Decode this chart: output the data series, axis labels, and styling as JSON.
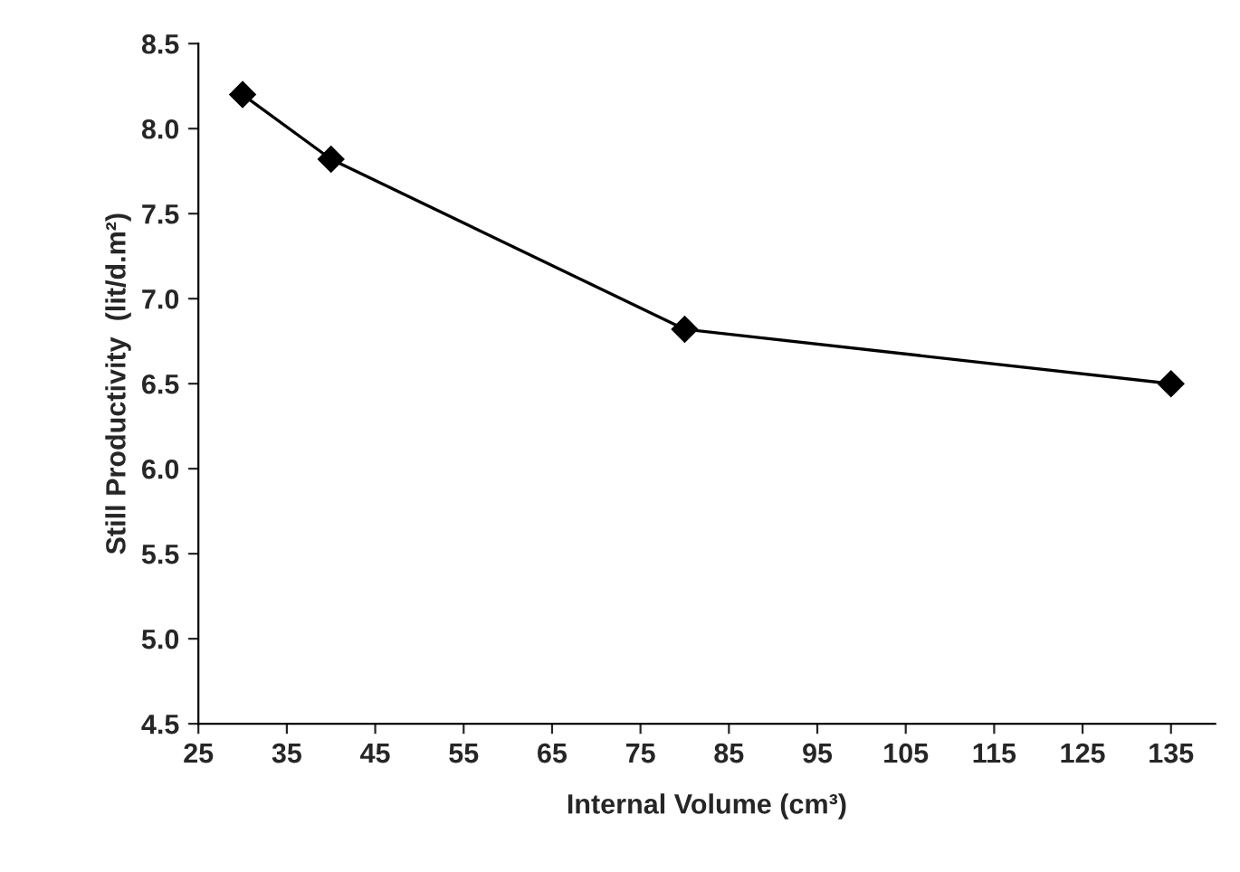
{
  "chart_data": {
    "type": "line",
    "xlabel": "Internal Volume (cm³)",
    "ylabel": "Still Productivity  (lit/d.m²)",
    "x": [
      30,
      40,
      80,
      135
    ],
    "series": [
      {
        "color": "#000000",
        "values": [
          8.2,
          7.82,
          6.82,
          6.5
        ]
      }
    ],
    "xlim": [
      25,
      140
    ],
    "xticks": [
      25,
      35,
      45,
      55,
      65,
      75,
      85,
      95,
      105,
      115,
      125,
      135
    ],
    "ylim": [
      4.5,
      8.5
    ],
    "yticks": [
      4.5,
      {
        "value": 5,
        "label": "5.0"
      },
      5.5,
      {
        "value": 6,
        "label": "6.0"
      },
      6.5,
      {
        "value": 7,
        "label": "7.0"
      },
      7.5,
      {
        "value": 8,
        "label": "8.0"
      },
      8.5
    ],
    "marker": "diamond",
    "line_style": "solid",
    "grid": false,
    "legend": false
  }
}
